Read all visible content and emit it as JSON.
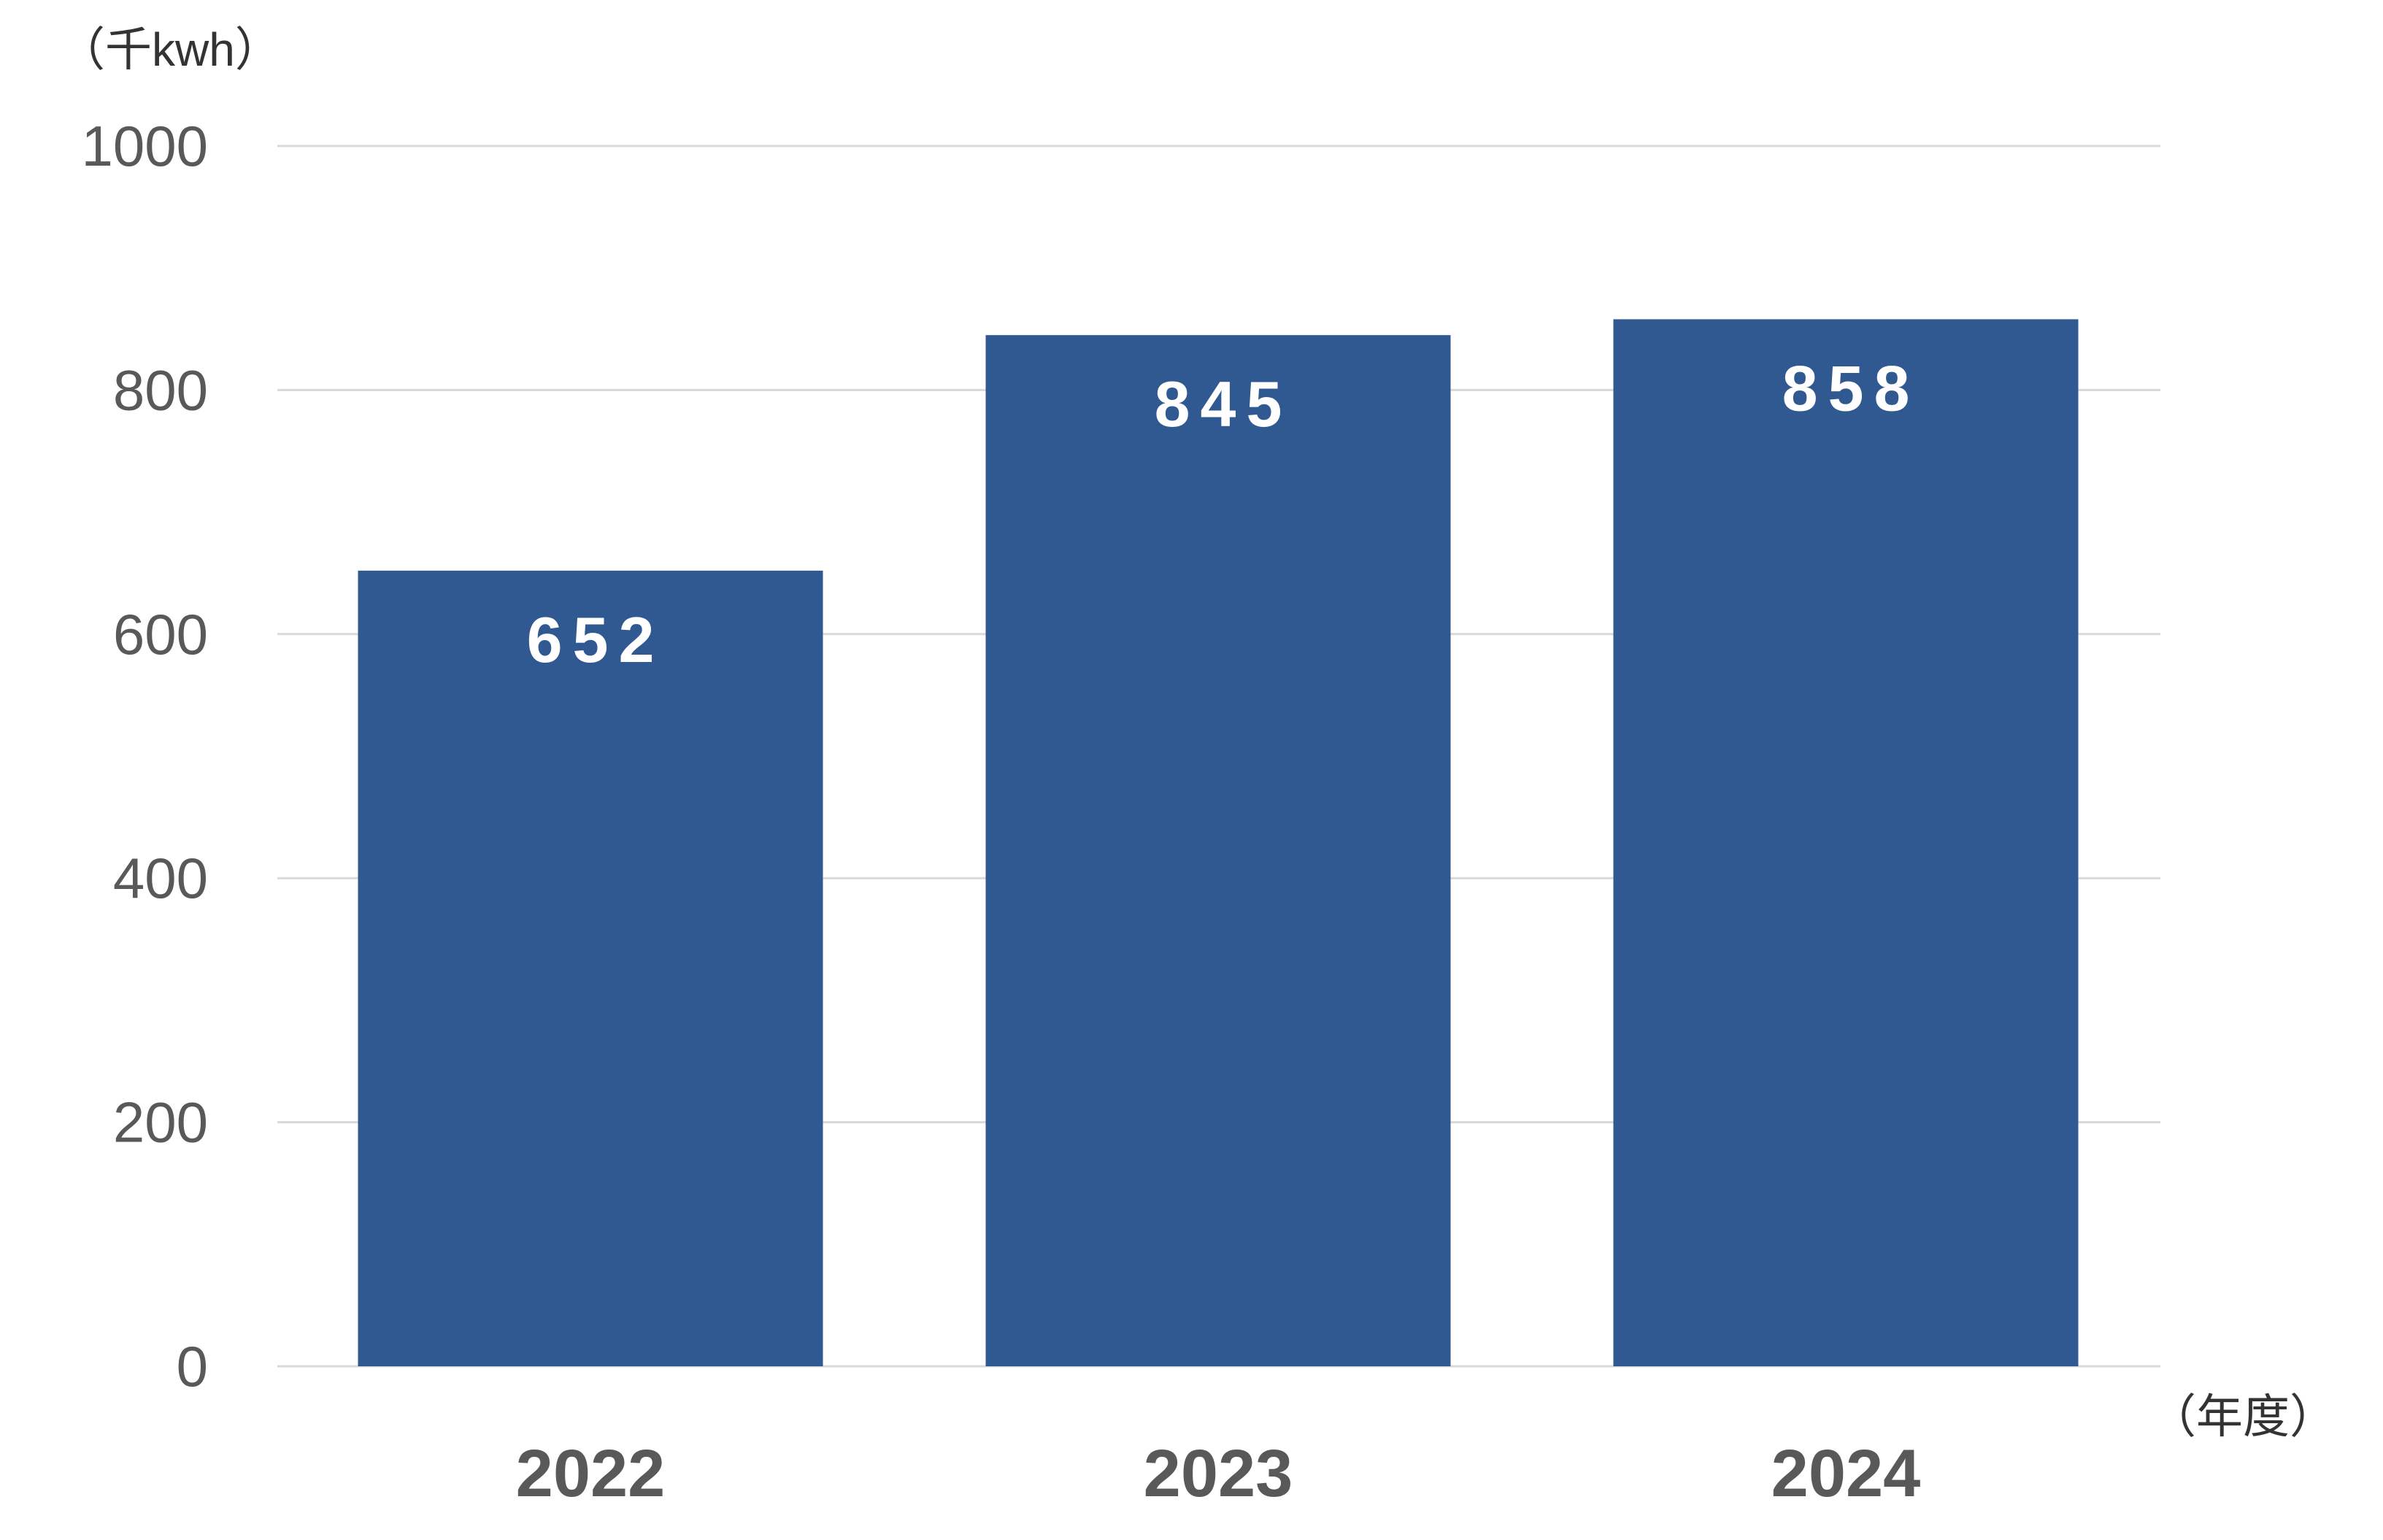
{
  "chart_data": {
    "type": "bar",
    "title": "",
    "ylabel": "（千kwh）",
    "xlabel": "（年度）",
    "categories": [
      "2022",
      "2023",
      "2024"
    ],
    "values": [
      652,
      845,
      858
    ],
    "data_labels": [
      "652",
      "845",
      "858"
    ],
    "ylim": [
      0,
      1000
    ],
    "yticks": [
      0,
      200,
      400,
      600,
      800,
      1000
    ],
    "ytick_labels": [
      "0",
      "200",
      "400",
      "600",
      "800",
      "1000"
    ],
    "grid": true,
    "legend": "none",
    "bar_color": "#305891",
    "grid_color": "#d9d9d9",
    "label_color": "#ffffff",
    "tick_color": "#595959"
  }
}
